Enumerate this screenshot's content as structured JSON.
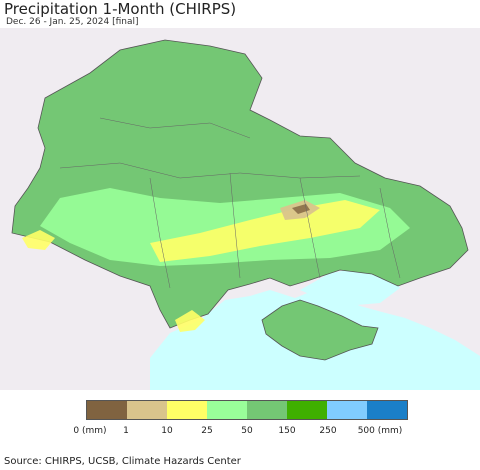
{
  "title": "Precipitation 1-Month (CHIRPS)",
  "subtitle": "Dec. 26 - Jan. 25, 2024 [final]",
  "colors": {
    "background_land": "#f0ecf1",
    "sea": "#ccffff",
    "border": "#555555"
  },
  "legend": {
    "colors": [
      "#806340",
      "#d9c48c",
      "#ffff66",
      "#99ff99",
      "#74c774",
      "#3fb000",
      "#80ccff",
      "#1a7fc8"
    ],
    "tick_labels": [
      "0 (mm)",
      "1",
      "10",
      "25",
      "50",
      "150",
      "250",
      "500 (mm)"
    ]
  },
  "source": "Source: CHIRPS, UCSB, Climate Hazards Center"
}
